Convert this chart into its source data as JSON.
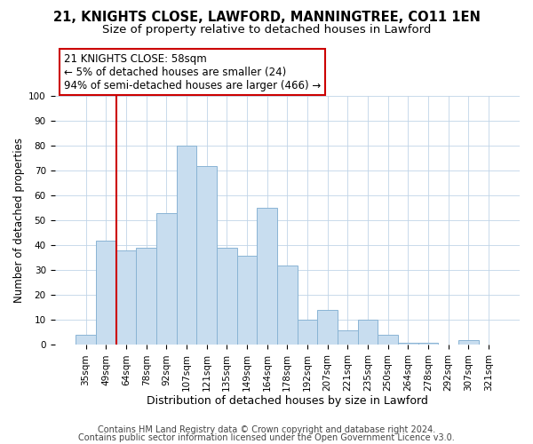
{
  "title": "21, KNIGHTS CLOSE, LAWFORD, MANNINGTREE, CO11 1EN",
  "subtitle": "Size of property relative to detached houses in Lawford",
  "xlabel": "Distribution of detached houses by size in Lawford",
  "ylabel": "Number of detached properties",
  "categories": [
    "35sqm",
    "49sqm",
    "64sqm",
    "78sqm",
    "92sqm",
    "107sqm",
    "121sqm",
    "135sqm",
    "149sqm",
    "164sqm",
    "178sqm",
    "192sqm",
    "207sqm",
    "221sqm",
    "235sqm",
    "250sqm",
    "264sqm",
    "278sqm",
    "292sqm",
    "307sqm",
    "321sqm"
  ],
  "values": [
    4,
    42,
    38,
    39,
    53,
    80,
    72,
    39,
    36,
    55,
    32,
    10,
    14,
    6,
    10,
    4,
    1,
    1,
    0,
    2,
    0
  ],
  "bar_color": "#c8ddef",
  "bar_edge_color": "#8ab4d4",
  "vline_color": "#cc0000",
  "vline_x_index": 2,
  "ylim": [
    0,
    100
  ],
  "annotation_box_text": "21 KNIGHTS CLOSE: 58sqm\n← 5% of detached houses are smaller (24)\n94% of semi-detached houses are larger (466) →",
  "footer1": "Contains HM Land Registry data © Crown copyright and database right 2024.",
  "footer2": "Contains public sector information licensed under the Open Government Licence v3.0.",
  "title_fontsize": 10.5,
  "subtitle_fontsize": 9.5,
  "xlabel_fontsize": 9,
  "ylabel_fontsize": 8.5,
  "tick_fontsize": 7.5,
  "annotation_fontsize": 8.5,
  "footer_fontsize": 7
}
